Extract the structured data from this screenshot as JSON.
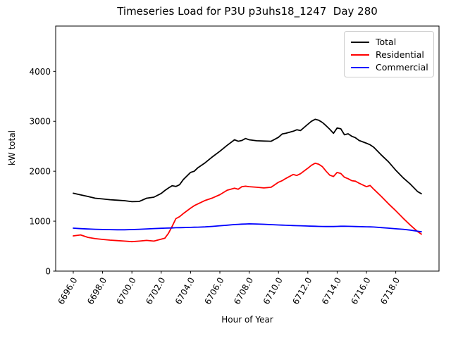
{
  "chart_data": {
    "type": "line",
    "title": "Timeseries Load for P3U p3uhs18_1247  Day 280",
    "xlabel": "Hour of Year",
    "ylabel": "kW total",
    "xlim": [
      6694.8,
      6720.95
    ],
    "ylim": [
      0,
      4907
    ],
    "grid": false,
    "legend_position": "upper right",
    "xticks": [
      {
        "v": 6696,
        "label": "6696.0"
      },
      {
        "v": 6698,
        "label": "6698.0"
      },
      {
        "v": 6700,
        "label": "6700.0"
      },
      {
        "v": 6702,
        "label": "6702.0"
      },
      {
        "v": 6704,
        "label": "6704.0"
      },
      {
        "v": 6706,
        "label": "6706.0"
      },
      {
        "v": 6708,
        "label": "6708.0"
      },
      {
        "v": 6710,
        "label": "6710.0"
      },
      {
        "v": 6712,
        "label": "6712.0"
      },
      {
        "v": 6714,
        "label": "6714.0"
      },
      {
        "v": 6716,
        "label": "6716.0"
      },
      {
        "v": 6718,
        "label": "6718.0"
      }
    ],
    "yticks": [
      {
        "v": 0,
        "label": "0"
      },
      {
        "v": 1000,
        "label": "1000"
      },
      {
        "v": 2000,
        "label": "2000"
      },
      {
        "v": 3000,
        "label": "3000"
      },
      {
        "v": 4000,
        "label": "4000"
      }
    ],
    "x": [
      6696,
      6696.5,
      6697,
      6697.5,
      6698,
      6698.5,
      6699,
      6699.5,
      6700,
      6700.5,
      6701,
      6701.5,
      6702,
      6702.25,
      6702.5,
      6702.75,
      6703,
      6703.25,
      6703.5,
      6704,
      6704.25,
      6704.5,
      6705,
      6705.5,
      6706,
      6706.5,
      6707,
      6707.25,
      6707.5,
      6707.75,
      6708,
      6708.5,
      6709,
      6709.5,
      6710,
      6710.25,
      6710.5,
      6711,
      6711.25,
      6711.5,
      6712,
      6712.25,
      6712.5,
      6712.75,
      6713,
      6713.25,
      6713.5,
      6713.75,
      6714,
      6714.25,
      6714.5,
      6714.75,
      6715,
      6715.25,
      6715.5,
      6716,
      6716.25,
      6716.5,
      6717,
      6717.5,
      6718,
      6718.5,
      6719,
      6719.5,
      6719.75
    ],
    "series": [
      {
        "name": "Total",
        "color": "#000000",
        "values": [
          1560,
          1525,
          1495,
          1460,
          1445,
          1430,
          1420,
          1410,
          1390,
          1395,
          1460,
          1480,
          1555,
          1615,
          1665,
          1710,
          1695,
          1730,
          1830,
          1975,
          2000,
          2070,
          2170,
          2290,
          2400,
          2520,
          2630,
          2600,
          2615,
          2655,
          2630,
          2610,
          2605,
          2600,
          2680,
          2745,
          2760,
          2800,
          2830,
          2815,
          2940,
          3000,
          3040,
          3020,
          2975,
          2910,
          2840,
          2760,
          2865,
          2850,
          2730,
          2750,
          2700,
          2670,
          2615,
          2560,
          2530,
          2480,
          2330,
          2190,
          2020,
          1870,
          1740,
          1590,
          1550
        ]
      },
      {
        "name": "Residential",
        "color": "#ff0000",
        "values": [
          705,
          725,
          675,
          650,
          635,
          620,
          610,
          600,
          590,
          600,
          615,
          600,
          640,
          660,
          760,
          900,
          1050,
          1090,
          1150,
          1260,
          1310,
          1345,
          1415,
          1465,
          1530,
          1620,
          1660,
          1640,
          1690,
          1700,
          1690,
          1680,
          1665,
          1680,
          1780,
          1810,
          1855,
          1935,
          1915,
          1950,
          2060,
          2120,
          2160,
          2140,
          2090,
          2000,
          1920,
          1895,
          1975,
          1955,
          1880,
          1850,
          1810,
          1800,
          1760,
          1690,
          1715,
          1640,
          1500,
          1350,
          1210,
          1060,
          920,
          790,
          740
        ]
      },
      {
        "name": "Commercial",
        "color": "#0000ff",
        "values": [
          860,
          850,
          843,
          837,
          833,
          830,
          828,
          828,
          832,
          838,
          845,
          852,
          858,
          860,
          863,
          865,
          868,
          870,
          872,
          876,
          878,
          880,
          886,
          895,
          908,
          920,
          932,
          936,
          940,
          944,
          946,
          944,
          938,
          930,
          924,
          921,
          918,
          912,
          910,
          908,
          902,
          900,
          898,
          896,
          894,
          893,
          892,
          893,
          896,
          898,
          898,
          897,
          895,
          893,
          891,
          887,
          885,
          882,
          872,
          860,
          848,
          838,
          820,
          798,
          788
        ]
      }
    ]
  }
}
